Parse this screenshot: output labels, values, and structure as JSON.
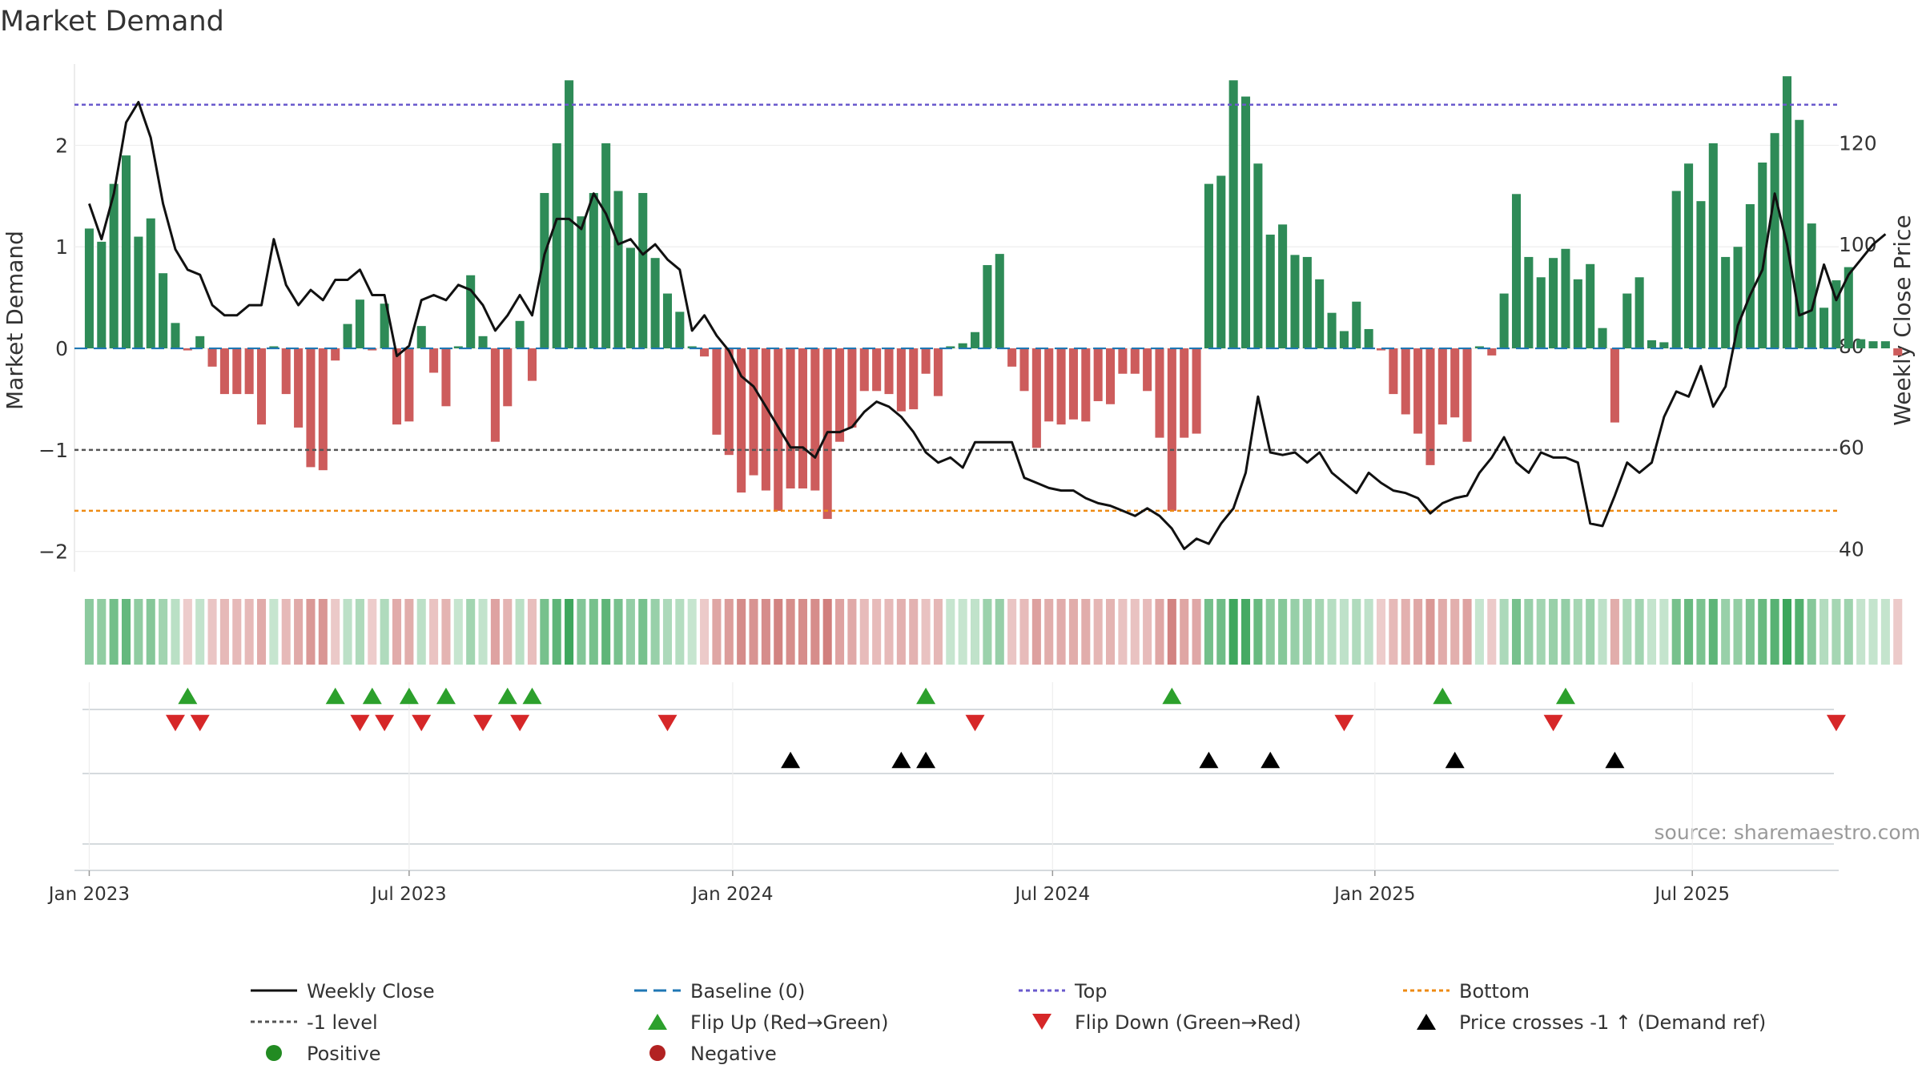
{
  "chart_data": {
    "type": "bar",
    "title": "Market Demand",
    "ylabel_left": "Market Demand",
    "ylabel_right": "Weekly Close Price",
    "source": "source: sharemaestro.com",
    "ylim_left": [
      -2.2,
      2.8
    ],
    "yticks_left": [
      -2,
      -1,
      0,
      1,
      2
    ],
    "ytick_labels_left": [
      "−2",
      "−1",
      "0",
      "1",
      "2"
    ],
    "ylim_right": [
      35.5,
      135.5
    ],
    "yticks_right": [
      40,
      60,
      80,
      100,
      120
    ],
    "xticks": [
      {
        "label": "Jan 2023",
        "week": 0
      },
      {
        "label": "Jul 2023",
        "week": 26
      },
      {
        "label": "Jan 2024",
        "week": 52.3
      },
      {
        "label": "Jul 2024",
        "week": 78.3
      },
      {
        "label": "Jan 2025",
        "week": 104.5
      },
      {
        "label": "Jul 2025",
        "week": 130.3
      }
    ],
    "x_range_weeks": [
      -1.2,
      142.2
    ],
    "reference_lines": {
      "baseline": 0,
      "top": 2.4,
      "minus_one": -1,
      "bottom": -1.6
    },
    "colors": {
      "positive_bar": "#2e8b57",
      "negative_bar": "#cd5c5c",
      "price_line": "#111111",
      "baseline": "#1f77b4",
      "top": "#6a5acd",
      "minus_one": "#555555",
      "bottom": "#ee8a12",
      "flip_up": "#2ca02c",
      "flip_down": "#d62728",
      "cross": "#000000",
      "positive_dot": "#228b22",
      "negative_dot": "#b22222"
    },
    "series": [
      {
        "name": "Market Demand",
        "values": [
          1.18,
          1.05,
          1.62,
          1.9,
          1.1,
          1.28,
          0.74,
          0.25,
          -0.02,
          0.12,
          -0.18,
          -0.45,
          -0.45,
          -0.45,
          -0.75,
          0.02,
          -0.45,
          -0.78,
          -1.17,
          -1.2,
          -0.12,
          0.24,
          0.48,
          -0.02,
          0.44,
          -0.75,
          -0.72,
          0.22,
          -0.24,
          -0.57,
          0.02,
          0.72,
          0.12,
          -0.92,
          -0.57,
          0.27,
          -0.32,
          1.53,
          2.02,
          2.64,
          1.3,
          1.53,
          2.02,
          1.55,
          0.99,
          1.53,
          0.89,
          0.54,
          0.36,
          0.02,
          -0.08,
          -0.85,
          -1.05,
          -1.42,
          -1.25,
          -1.4,
          -1.6,
          -1.38,
          -1.38,
          -1.4,
          -1.68,
          -0.92,
          -0.78,
          -0.42,
          -0.42,
          -0.45,
          -0.62,
          -0.6,
          -0.25,
          -0.47,
          0.02,
          0.05,
          0.16,
          0.82,
          0.93,
          -0.18,
          -0.42,
          -0.98,
          -0.72,
          -0.75,
          -0.7,
          -0.72,
          -0.52,
          -0.55,
          -0.25,
          -0.25,
          -0.42,
          -0.88,
          -1.6,
          -0.88,
          -0.84,
          1.62,
          1.7,
          2.64,
          2.48,
          1.82,
          1.12,
          1.22,
          0.92,
          0.9,
          0.68,
          0.35,
          0.17,
          0.46,
          0.19,
          -0.02,
          -0.45,
          -0.65,
          -0.84,
          -1.15,
          -0.75,
          -0.68,
          -0.92,
          0.02,
          -0.07,
          0.54,
          1.52,
          0.9,
          0.7,
          0.89,
          0.98,
          0.68,
          0.83,
          0.2,
          -0.73,
          0.54,
          0.7,
          0.08,
          0.06,
          1.55,
          1.82,
          1.45,
          2.02,
          0.9,
          1.0,
          1.42,
          1.83,
          2.12,
          2.68,
          2.25,
          1.23,
          0.4,
          0.67,
          0.8,
          0.09,
          0.07,
          0.07,
          -0.07
        ]
      },
      {
        "name": "Weekly Close",
        "values": [
          108,
          101,
          110,
          124,
          128,
          121,
          108,
          99,
          95,
          94,
          88,
          86,
          86,
          88,
          88,
          101,
          92,
          88,
          91,
          89,
          93,
          93,
          95,
          90,
          90,
          78,
          80,
          89,
          90,
          89,
          92,
          91,
          88,
          83,
          86,
          90,
          86,
          98,
          105,
          105,
          103,
          110,
          106,
          100,
          101,
          98,
          100,
          97,
          95,
          83,
          86,
          82,
          79,
          74,
          72,
          68,
          64,
          60,
          60,
          58,
          63,
          63,
          64,
          67,
          69,
          68,
          66,
          63,
          59,
          57,
          58,
          56,
          61,
          61,
          61,
          61,
          54,
          53,
          52,
          51.5,
          51.5,
          50,
          49,
          48.5,
          47.5,
          46.5,
          48,
          46.5,
          44,
          40,
          42,
          41,
          45,
          48,
          55,
          70,
          59,
          58.5,
          59,
          57,
          59,
          55,
          53,
          51,
          55,
          53,
          51.5,
          51,
          50,
          47,
          49,
          50,
          50.5,
          55,
          58,
          62,
          57,
          55,
          59,
          58,
          58,
          57,
          45,
          44.5,
          50.5,
          57,
          55,
          57,
          66,
          71,
          70,
          76,
          68,
          72,
          84,
          90,
          95,
          110,
          100,
          86,
          87,
          96,
          89,
          94,
          97,
          100,
          102
        ]
      }
    ],
    "heatmap_strip": {
      "description": "colour strip of Market Demand per week",
      "value_source": "Market Demand"
    },
    "markers": {
      "flip_up_weeks": [
        8,
        20,
        23,
        26,
        29,
        34,
        36,
        68,
        88,
        110,
        120
      ],
      "flip_down_weeks": [
        7,
        9,
        22,
        24,
        27,
        32,
        35,
        47,
        72,
        102,
        119,
        142
      ],
      "price_cross_weeks": [
        57,
        66,
        68,
        91,
        96,
        111,
        124
      ]
    },
    "legend": {
      "position": "bottom",
      "entries": [
        {
          "label": "Weekly Close",
          "symbol": "line",
          "style": "solid",
          "color": "#111111"
        },
        {
          "label": "Baseline (0)",
          "symbol": "line",
          "style": "dashed",
          "color": "#1f77b4"
        },
        {
          "label": "Top",
          "symbol": "line",
          "style": "dotted",
          "color": "#6a5acd"
        },
        {
          "label": "Bottom",
          "symbol": "line",
          "style": "dotted",
          "color": "#ee8a12"
        },
        {
          "label": "-1 level",
          "symbol": "line",
          "style": "dotted",
          "color": "#555555"
        },
        {
          "label": "Flip Up (Red→Green)",
          "symbol": "triangle-up",
          "color": "#2ca02c"
        },
        {
          "label": "Flip Down (Green→Red)",
          "symbol": "triangle-down",
          "color": "#d62728"
        },
        {
          "label": "Price crosses -1 ↑ (Demand ref)",
          "symbol": "triangle-up",
          "color": "#000000"
        },
        {
          "label": "Positive",
          "symbol": "dot",
          "color": "#228b22"
        },
        {
          "label": "Negative",
          "symbol": "dot",
          "color": "#b22222"
        }
      ]
    }
  }
}
